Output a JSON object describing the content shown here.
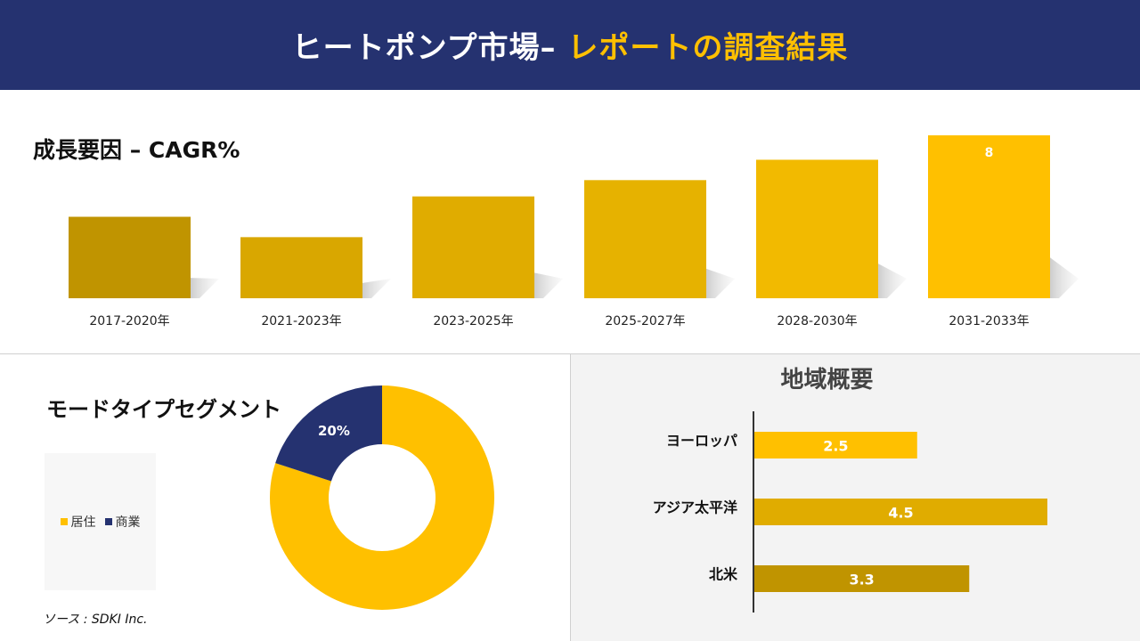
{
  "header": {
    "title_main": "ヒートポンプ市場–",
    "title_accent": "レポートの調査結果"
  },
  "colors": {
    "header_bg": "#253270",
    "accent": "#FFC000",
    "navy": "#253270"
  },
  "growth": {
    "title": "成長要因 – CAGR%"
  },
  "segment": {
    "title": "モードタイプセグメント",
    "source": "ソース : SDKI Inc.",
    "legend": [
      {
        "label": "居住",
        "color": "#FFC000"
      },
      {
        "label": "商業",
        "color": "#253270"
      }
    ]
  },
  "region": {
    "title": "地域概要"
  },
  "chart_data": [
    {
      "type": "bar",
      "categories": [
        "2017-2020年",
        "2021-2023年",
        "2023-2025年",
        "2025-2027年",
        "2028-2030年",
        "2031-2033年"
      ],
      "values": [
        4.0,
        3.0,
        5.0,
        5.8,
        6.8,
        8
      ],
      "data_labels": [
        "",
        "",
        "",
        "",
        "",
        "8"
      ],
      "colors": [
        "#C09400",
        "#D9A700",
        "#E0AC00",
        "#E6B200",
        "#F2BA00",
        "#FFC000"
      ],
      "ylim": [
        0,
        8
      ]
    },
    {
      "type": "pie",
      "categories": [
        "居住",
        "商業"
      ],
      "values": [
        80,
        20
      ],
      "labels": [
        "80%",
        "20%"
      ],
      "colors": [
        "#FFC000",
        "#253270"
      ]
    },
    {
      "type": "bar",
      "orientation": "horizontal",
      "categories": [
        "ヨーロッパ",
        "アジア太平洋",
        "北米"
      ],
      "values": [
        2.5,
        4.5,
        3.3
      ],
      "labels": [
        "2.5",
        "4.5",
        "3.3"
      ],
      "colors": [
        "#FFC000",
        "#E0AC00",
        "#C09400"
      ],
      "xlim": [
        0,
        4.5
      ]
    }
  ]
}
